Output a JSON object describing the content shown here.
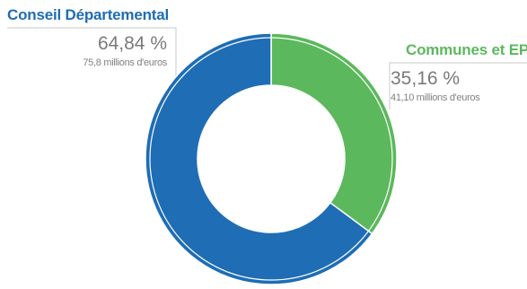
{
  "chart_data": {
    "type": "pie",
    "donut": true,
    "categories": [
      "Conseil Départemental",
      "Communes et EPCI"
    ],
    "values": [
      64.84,
      35.16
    ],
    "amounts": [
      "75,8 millions d'euros",
      "41,10 millions d'euros"
    ],
    "value_labels": [
      "64,84 %",
      "35,16 %"
    ],
    "colors": [
      "#1e6db5",
      "#5cb85c"
    ],
    "guide_color": "#c8c8c8",
    "title": "",
    "legend": "none"
  },
  "labels": {
    "left": {
      "name": "Conseil Départemental",
      "pct": "64,84 %",
      "amount": "75,8 millions d'euros"
    },
    "right": {
      "name": "Communes et EPCI",
      "pct": "35,16 %",
      "amount": "41,10 millions d'euros"
    }
  }
}
